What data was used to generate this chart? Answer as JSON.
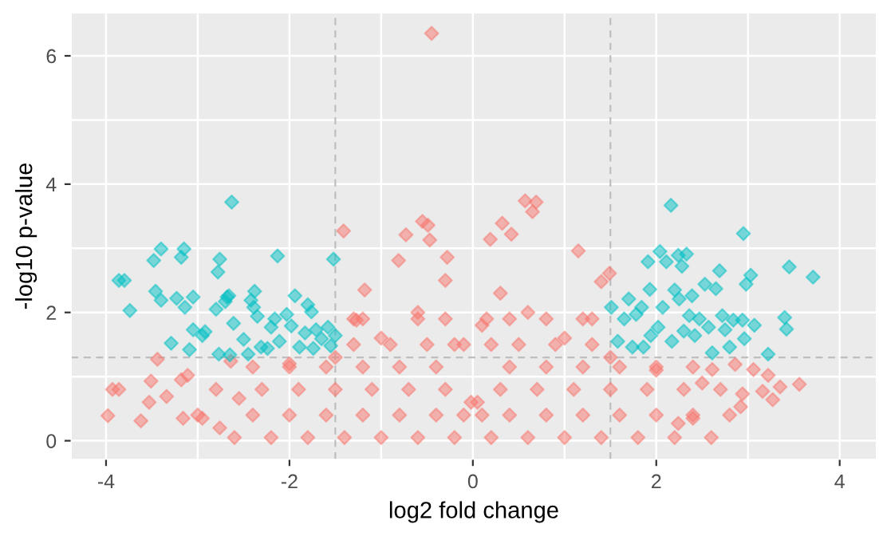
{
  "chart_data": {
    "type": "scatter",
    "xlabel": "log2 fold change",
    "ylabel": "-log10 p-value",
    "xlim": [
      -4.38,
      4.4
    ],
    "ylim": [
      -0.29,
      6.67
    ],
    "xticks": [
      -4,
      {
        "value": -3,
        "label": null
      },
      -2,
      {
        "value": -1,
        "label": null
      },
      0,
      {
        "value": 1,
        "label": null
      },
      2,
      {
        "value": 3,
        "label": null
      },
      4
    ],
    "yticks": [
      0,
      {
        "value": 1,
        "label": null
      },
      2,
      {
        "value": 3,
        "label": null
      },
      4,
      {
        "value": 5,
        "label": null
      },
      6
    ],
    "grid": true,
    "marker": "diamond",
    "legend": false,
    "ref_lines": [
      {
        "axis": "x",
        "value": -1.5,
        "color": "#bebebe",
        "line_style": "dashed"
      },
      {
        "axis": "x",
        "value": 1.5,
        "color": "#bebebe",
        "line_style": "dashed"
      },
      {
        "axis": "y",
        "value": 1.3,
        "color": "#bebebe",
        "line_style": "dashed"
      }
    ],
    "series": [
      {
        "color": "#f8766d",
        "x": [
          -0.45,
          -1.41,
          -0.55,
          -0.49,
          -0.73,
          -0.47,
          0.57,
          0.69,
          0.65,
          0.32,
          0.42,
          0.19,
          1.15,
          1.49,
          1.4,
          -0.81,
          -0.28,
          -1.18,
          -1.27,
          -3.98,
          -3.93,
          -3.86,
          -3.62,
          -3.53,
          -3.51,
          -3.44,
          -3.34,
          -3.16,
          -3.18,
          -2.95,
          -2.76,
          -3.11,
          -2.64,
          -2.55,
          3.16,
          3.27,
          3.22,
          3.35,
          3.56,
          3.06,
          2.94,
          2.92,
          2.61,
          2.4,
          2.24,
          2.86,
          -2.0,
          -1.5,
          -1.3,
          -1.0,
          -0.6,
          -0.3,
          -0.1,
          -0.02,
          0.05,
          0.1,
          0.3,
          0.6,
          1.0,
          1.3,
          1.5,
          2.0,
          2.5,
          -2.6,
          -2.2,
          -1.8,
          -1.4,
          -1.0,
          -0.6,
          -0.2,
          0.2,
          0.6,
          1.0,
          1.4,
          1.8,
          2.2,
          2.6,
          -3.0,
          -2.4,
          -2.0,
          -1.6,
          -1.2,
          -0.8,
          -0.4,
          -0.1,
          0.1,
          0.4,
          0.8,
          1.2,
          1.6,
          2.0,
          2.4,
          2.8,
          -2.8,
          -2.3,
          -1.9,
          -1.5,
          -1.1,
          -0.7,
          -0.3,
          0.3,
          0.7,
          1.1,
          1.5,
          1.9,
          2.3,
          2.7,
          -2.4,
          -2.0,
          -1.6,
          -1.2,
          -0.8,
          -0.4,
          0.4,
          0.8,
          1.2,
          1.6,
          2.0,
          2.4,
          -1.3,
          -0.9,
          -0.5,
          -0.2,
          0.2,
          0.5,
          0.9,
          1.3,
          -1.2,
          -0.6,
          -0.3,
          0.15,
          0.4,
          0.8,
          1.2
        ],
        "values": [
          6.35,
          3.27,
          3.42,
          3.36,
          3.21,
          3.13,
          3.74,
          3.72,
          3.57,
          3.39,
          3.22,
          3.14,
          2.96,
          2.61,
          2.48,
          2.81,
          2.86,
          2.35,
          1.88,
          0.39,
          0.8,
          0.8,
          0.31,
          0.6,
          0.93,
          1.27,
          0.69,
          0.35,
          0.95,
          0.35,
          0.2,
          1.02,
          1.24,
          0.66,
          0.77,
          0.64,
          1.02,
          0.84,
          0.88,
          1.11,
          0.73,
          0.53,
          1.11,
          0.35,
          0.27,
          1.19,
          1.2,
          1.3,
          1.9,
          1.6,
          2.0,
          2.5,
          1.5,
          0.6,
          0.6,
          1.8,
          2.3,
          2.0,
          1.6,
          1.9,
          1.3,
          1.1,
          0.9,
          0.05,
          0.05,
          0.05,
          0.05,
          0.05,
          0.05,
          0.05,
          0.05,
          0.05,
          0.05,
          0.05,
          0.05,
          0.05,
          0.05,
          0.4,
          0.4,
          0.4,
          0.4,
          0.4,
          0.4,
          0.4,
          0.4,
          0.4,
          0.4,
          0.4,
          0.4,
          0.4,
          0.4,
          0.4,
          0.4,
          0.8,
          0.8,
          0.8,
          0.8,
          0.8,
          0.8,
          0.8,
          0.8,
          0.8,
          0.8,
          0.8,
          0.8,
          0.8,
          0.8,
          1.15,
          1.15,
          1.15,
          1.15,
          1.15,
          1.15,
          1.15,
          1.15,
          1.15,
          1.15,
          1.15,
          1.15,
          1.5,
          1.5,
          1.5,
          1.5,
          1.5,
          1.5,
          1.5,
          1.5,
          1.9,
          1.9,
          1.9,
          1.9,
          1.9,
          1.9,
          1.9
        ]
      },
      {
        "color": "#00bfc4",
        "x": [
          -3.86,
          -3.8,
          -3.74,
          -3.48,
          -3.4,
          -3.46,
          -3.4,
          -3.29,
          -3.23,
          -3.18,
          -3.15,
          -3.14,
          -3.09,
          -3.05,
          -3.05,
          -2.95,
          -2.92,
          -2.8,
          -2.77,
          -2.76,
          -2.78,
          -2.7,
          -2.68,
          -2.66,
          -2.63,
          -2.65,
          -2.61,
          -2.5,
          -2.45,
          -2.42,
          -2.38,
          -2.39,
          -2.35,
          -2.31,
          -2.24,
          -2.2,
          -2.16,
          -2.13,
          -2.11,
          -2.03,
          -1.98,
          -1.94,
          -1.89,
          -1.83,
          -1.8,
          -1.76,
          -1.74,
          -1.71,
          -1.65,
          -1.58,
          -1.55,
          -1.52,
          -1.5,
          1.51,
          1.58,
          1.65,
          1.7,
          1.74,
          1.78,
          1.84,
          1.86,
          1.91,
          1.93,
          1.94,
          2.02,
          2.04,
          2.07,
          2.11,
          2.16,
          2.17,
          2.2,
          2.24,
          2.25,
          2.28,
          2.3,
          2.33,
          2.36,
          2.39,
          2.42,
          2.47,
          2.53,
          2.57,
          2.61,
          2.65,
          2.69,
          2.72,
          2.75,
          2.8,
          2.84,
          2.94,
          2.95,
          2.96,
          2.98,
          3.03,
          3.07,
          3.22,
          3.4,
          3.42,
          3.45,
          3.71
        ],
        "values": [
          2.5,
          2.5,
          2.03,
          2.81,
          2.99,
          2.33,
          2.19,
          1.52,
          2.22,
          2.86,
          2.99,
          2.08,
          1.42,
          2.24,
          1.73,
          1.64,
          1.7,
          2.05,
          1.35,
          2.83,
          2.63,
          2.17,
          2.24,
          2.26,
          3.72,
          1.34,
          1.83,
          1.58,
          1.35,
          2.19,
          2.33,
          2.08,
          1.94,
          1.46,
          1.44,
          1.77,
          1.9,
          2.88,
          1.55,
          1.97,
          1.79,
          2.26,
          1.46,
          1.68,
          2.12,
          2.01,
          1.44,
          1.73,
          1.59,
          1.77,
          1.48,
          2.83,
          1.64,
          2.08,
          1.55,
          1.9,
          2.21,
          1.46,
          1.97,
          2.08,
          1.46,
          2.79,
          2.36,
          1.64,
          1.77,
          2.95,
          2.08,
          2.79,
          3.67,
          1.55,
          2.35,
          2.89,
          2.21,
          2.72,
          1.71,
          2.91,
          1.95,
          2.26,
          1.64,
          1.9,
          2.44,
          1.77,
          1.37,
          2.37,
          2.65,
          1.95,
          1.73,
          1.46,
          1.88,
          1.88,
          3.23,
          1.59,
          2.44,
          2.58,
          1.8,
          1.35,
          1.92,
          1.74,
          2.71,
          2.55
        ]
      }
    ]
  }
}
